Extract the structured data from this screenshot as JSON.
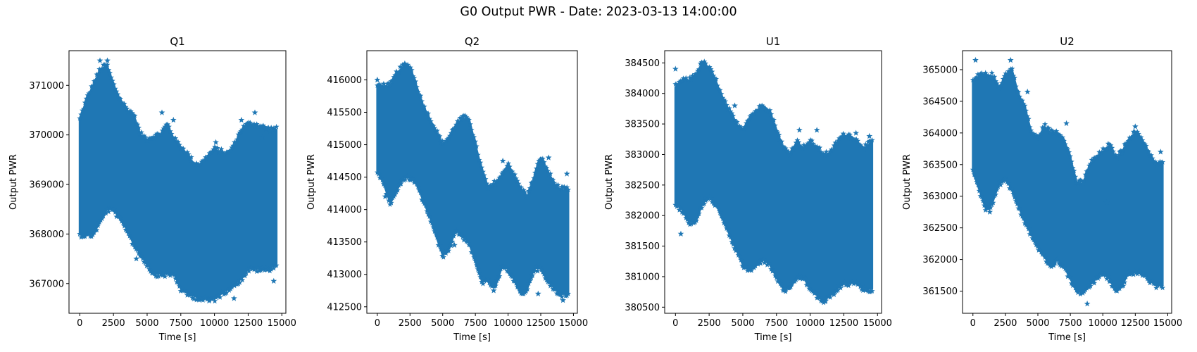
{
  "figure": {
    "title": "G0 Output PWR - Date: 2023-03-13 14:00:00",
    "marker_color": "#1f77b4"
  },
  "chart_data": [
    {
      "type": "scatter",
      "title": "Q1",
      "xlabel": "Time [s]",
      "ylabel": "Output PWR",
      "xlim": [
        -800,
        15300
      ],
      "ylim": [
        366400,
        371700
      ],
      "xticks": [
        0,
        2500,
        5000,
        7500,
        10000,
        12500,
        15000
      ],
      "yticks": [
        367000,
        368000,
        369000,
        370000,
        371000
      ],
      "xmax_data": 14600,
      "upper_envelope": [
        [
          0,
          370300
        ],
        [
          500,
          370700
        ],
        [
          1000,
          371000
        ],
        [
          1500,
          371300
        ],
        [
          2000,
          371400
        ],
        [
          2500,
          371000
        ],
        [
          3000,
          370700
        ],
        [
          3500,
          370500
        ],
        [
          4000,
          370400
        ],
        [
          4500,
          370000
        ],
        [
          5000,
          369900
        ],
        [
          6000,
          370000
        ],
        [
          6500,
          370200
        ],
        [
          7000,
          369900
        ],
        [
          8000,
          369600
        ],
        [
          8500,
          369400
        ],
        [
          9000,
          369400
        ],
        [
          10000,
          369700
        ],
        [
          11000,
          369600
        ],
        [
          11500,
          369800
        ],
        [
          12000,
          370100
        ],
        [
          12500,
          370200
        ],
        [
          13000,
          370200
        ],
        [
          14000,
          370100
        ],
        [
          14600,
          370100
        ]
      ],
      "lower_envelope": [
        [
          0,
          368000
        ],
        [
          1000,
          368000
        ],
        [
          2000,
          368500
        ],
        [
          2500,
          368500
        ],
        [
          3000,
          368300
        ],
        [
          3500,
          368100
        ],
        [
          4000,
          367800
        ],
        [
          5000,
          367400
        ],
        [
          5500,
          367200
        ],
        [
          6000,
          367200
        ],
        [
          7000,
          367200
        ],
        [
          7500,
          366900
        ],
        [
          8000,
          366800
        ],
        [
          9000,
          366700
        ],
        [
          10000,
          366700
        ],
        [
          10500,
          366800
        ],
        [
          11000,
          366900
        ],
        [
          12000,
          367100
        ],
        [
          12500,
          367300
        ],
        [
          13000,
          367300
        ],
        [
          14000,
          367300
        ],
        [
          14600,
          367400
        ]
      ],
      "outliers": [
        [
          1500,
          371500
        ],
        [
          2050,
          371500
        ],
        [
          4200,
          367500
        ],
        [
          6100,
          370450
        ],
        [
          6950,
          370300
        ],
        [
          9600,
          366650
        ],
        [
          10100,
          369850
        ],
        [
          11450,
          366700
        ],
        [
          12000,
          370300
        ],
        [
          13000,
          370450
        ],
        [
          13550,
          369950
        ],
        [
          14400,
          367050
        ]
      ]
    },
    {
      "type": "scatter",
      "title": "Q2",
      "xlabel": "Time [s]",
      "ylabel": "Output PWR",
      "xlim": [
        -800,
        15300
      ],
      "ylim": [
        412400,
        416450
      ],
      "xticks": [
        0,
        2500,
        5000,
        7500,
        10000,
        12500,
        15000
      ],
      "yticks": [
        412500,
        413000,
        413500,
        414000,
        414500,
        415000,
        415500,
        416000
      ],
      "xmax_data": 14600,
      "upper_envelope": [
        [
          0,
          415900
        ],
        [
          1000,
          415900
        ],
        [
          1500,
          416100
        ],
        [
          2000,
          416200
        ],
        [
          2500,
          416200
        ],
        [
          3000,
          415900
        ],
        [
          3500,
          415600
        ],
        [
          4000,
          415400
        ],
        [
          5000,
          415000
        ],
        [
          5500,
          415100
        ],
        [
          6000,
          415300
        ],
        [
          6500,
          415400
        ],
        [
          7000,
          415400
        ],
        [
          7500,
          415000
        ],
        [
          8000,
          414600
        ],
        [
          8500,
          414300
        ],
        [
          9000,
          414400
        ],
        [
          9500,
          414500
        ],
        [
          10000,
          414700
        ],
        [
          11000,
          414300
        ],
        [
          11500,
          414200
        ],
        [
          12000,
          414500
        ],
        [
          12500,
          414800
        ],
        [
          13000,
          414600
        ],
        [
          13500,
          414400
        ],
        [
          14000,
          414300
        ],
        [
          14600,
          414300
        ]
      ],
      "lower_envelope": [
        [
          0,
          414600
        ],
        [
          500,
          414400
        ],
        [
          1000,
          414100
        ],
        [
          1500,
          414300
        ],
        [
          2000,
          414500
        ],
        [
          2500,
          414500
        ],
        [
          3000,
          414400
        ],
        [
          4000,
          413900
        ],
        [
          5000,
          413300
        ],
        [
          5500,
          413400
        ],
        [
          6000,
          413700
        ],
        [
          6500,
          413600
        ],
        [
          7000,
          413500
        ],
        [
          7500,
          413200
        ],
        [
          8000,
          412900
        ],
        [
          8500,
          412900
        ],
        [
          9000,
          412800
        ],
        [
          9500,
          413100
        ],
        [
          10000,
          413100
        ],
        [
          10500,
          412900
        ],
        [
          11000,
          412700
        ],
        [
          11500,
          412800
        ],
        [
          12000,
          413100
        ],
        [
          12500,
          413100
        ],
        [
          13000,
          412900
        ],
        [
          13500,
          412800
        ],
        [
          14000,
          412700
        ],
        [
          14600,
          412700
        ]
      ],
      "outliers": [
        [
          0,
          416000
        ],
        [
          2100,
          416250
        ],
        [
          600,
          414200
        ],
        [
          1800,
          414400
        ],
        [
          5900,
          413450
        ],
        [
          8900,
          412750
        ],
        [
          9600,
          414750
        ],
        [
          12300,
          412700
        ],
        [
          13100,
          414800
        ],
        [
          14200,
          412600
        ],
        [
          14500,
          414550
        ]
      ]
    },
    {
      "type": "scatter",
      "title": "U1",
      "xlabel": "Time [s]",
      "ylabel": "Output PWR",
      "xlim": [
        -800,
        15300
      ],
      "ylim": [
        380400,
        384700
      ],
      "xticks": [
        0,
        2500,
        5000,
        7500,
        10000,
        12500,
        15000
      ],
      "yticks": [
        380500,
        381000,
        381500,
        382000,
        382500,
        383000,
        383500,
        384000,
        384500
      ],
      "xmax_data": 14600,
      "upper_envelope": [
        [
          0,
          384100
        ],
        [
          500,
          384200
        ],
        [
          1000,
          384200
        ],
        [
          1500,
          384300
        ],
        [
          2000,
          384500
        ],
        [
          2500,
          384400
        ],
        [
          3000,
          384200
        ],
        [
          3500,
          383900
        ],
        [
          4000,
          383700
        ],
        [
          4500,
          383500
        ],
        [
          5000,
          383400
        ],
        [
          5500,
          383600
        ],
        [
          6000,
          383700
        ],
        [
          6500,
          383800
        ],
        [
          7000,
          383700
        ],
        [
          7500,
          383400
        ],
        [
          8000,
          383100
        ],
        [
          8500,
          383000
        ],
        [
          9000,
          383200
        ],
        [
          9500,
          383100
        ],
        [
          10000,
          383200
        ],
        [
          10500,
          383100
        ],
        [
          11000,
          383000
        ],
        [
          11500,
          383000
        ],
        [
          12000,
          383200
        ],
        [
          12500,
          383300
        ],
        [
          13000,
          383300
        ],
        [
          13500,
          383200
        ],
        [
          14000,
          383100
        ],
        [
          14600,
          383200
        ]
      ],
      "lower_envelope": [
        [
          0,
          382200
        ],
        [
          500,
          382100
        ],
        [
          1000,
          381900
        ],
        [
          1500,
          381900
        ],
        [
          2000,
          382200
        ],
        [
          2500,
          382300
        ],
        [
          3000,
          382200
        ],
        [
          4000,
          381700
        ],
        [
          5000,
          381200
        ],
        [
          5500,
          381100
        ],
        [
          6000,
          381200
        ],
        [
          6500,
          381300
        ],
        [
          7000,
          381200
        ],
        [
          7500,
          381000
        ],
        [
          8000,
          380800
        ],
        [
          8500,
          380800
        ],
        [
          9000,
          381000
        ],
        [
          9500,
          381000
        ],
        [
          10000,
          380800
        ],
        [
          10500,
          380700
        ],
        [
          11000,
          380600
        ],
        [
          11500,
          380700
        ],
        [
          12000,
          380800
        ],
        [
          12500,
          380900
        ],
        [
          13000,
          380900
        ],
        [
          13500,
          380900
        ],
        [
          14000,
          380800
        ],
        [
          14600,
          380800
        ]
      ],
      "outliers": [
        [
          0,
          384400
        ],
        [
          400,
          381700
        ],
        [
          2000,
          382300
        ],
        [
          4400,
          383800
        ],
        [
          6700,
          381250
        ],
        [
          8200,
          380800
        ],
        [
          9200,
          383400
        ],
        [
          10500,
          383400
        ],
        [
          11150,
          380600
        ],
        [
          13400,
          383350
        ],
        [
          14400,
          383300
        ]
      ]
    },
    {
      "type": "scatter",
      "title": "U2",
      "xlabel": "Time [s]",
      "ylabel": "Output PWR",
      "xlim": [
        -800,
        15300
      ],
      "ylim": [
        361150,
        365300
      ],
      "xticks": [
        0,
        2500,
        5000,
        7500,
        10000,
        12500,
        15000
      ],
      "yticks": [
        361500,
        362000,
        362500,
        363000,
        363500,
        364000,
        364500,
        365000
      ],
      "xmax_data": 14600,
      "upper_envelope": [
        [
          0,
          364800
        ],
        [
          500,
          364900
        ],
        [
          1000,
          364900
        ],
        [
          1500,
          364900
        ],
        [
          2000,
          364700
        ],
        [
          2500,
          364900
        ],
        [
          3000,
          365000
        ],
        [
          3500,
          364600
        ],
        [
          4000,
          364400
        ],
        [
          4500,
          364000
        ],
        [
          5000,
          363900
        ],
        [
          5500,
          364100
        ],
        [
          6000,
          364000
        ],
        [
          6500,
          364000
        ],
        [
          7000,
          363900
        ],
        [
          7500,
          363600
        ],
        [
          8000,
          363200
        ],
        [
          8500,
          363200
        ],
        [
          9000,
          363500
        ],
        [
          9500,
          363600
        ],
        [
          10000,
          363700
        ],
        [
          10500,
          363800
        ],
        [
          11000,
          363600
        ],
        [
          11500,
          363700
        ],
        [
          12000,
          363900
        ],
        [
          12500,
          364000
        ],
        [
          13000,
          363900
        ],
        [
          13500,
          363700
        ],
        [
          14000,
          363500
        ],
        [
          14600,
          363500
        ]
      ],
      "lower_envelope": [
        [
          0,
          363400
        ],
        [
          500,
          363100
        ],
        [
          1000,
          362800
        ],
        [
          1500,
          362900
        ],
        [
          2000,
          363200
        ],
        [
          2500,
          363300
        ],
        [
          3000,
          363100
        ],
        [
          4000,
          362600
        ],
        [
          5000,
          362200
        ],
        [
          6000,
          361900
        ],
        [
          6500,
          362000
        ],
        [
          7000,
          361900
        ],
        [
          7500,
          361700
        ],
        [
          8000,
          361500
        ],
        [
          8500,
          361500
        ],
        [
          9000,
          361600
        ],
        [
          9500,
          361700
        ],
        [
          10000,
          361800
        ],
        [
          10500,
          361700
        ],
        [
          11000,
          361500
        ],
        [
          11500,
          361600
        ],
        [
          12000,
          361800
        ],
        [
          12500,
          361800
        ],
        [
          13000,
          361800
        ],
        [
          13500,
          361700
        ],
        [
          14000,
          361600
        ],
        [
          14600,
          361600
        ]
      ],
      "outliers": [
        [
          200,
          365150
        ],
        [
          2900,
          365150
        ],
        [
          1300,
          362750
        ],
        [
          4200,
          364650
        ],
        [
          7200,
          364150
        ],
        [
          8800,
          361300
        ],
        [
          10300,
          362900
        ],
        [
          12500,
          364100
        ],
        [
          14450,
          363700
        ]
      ]
    }
  ]
}
